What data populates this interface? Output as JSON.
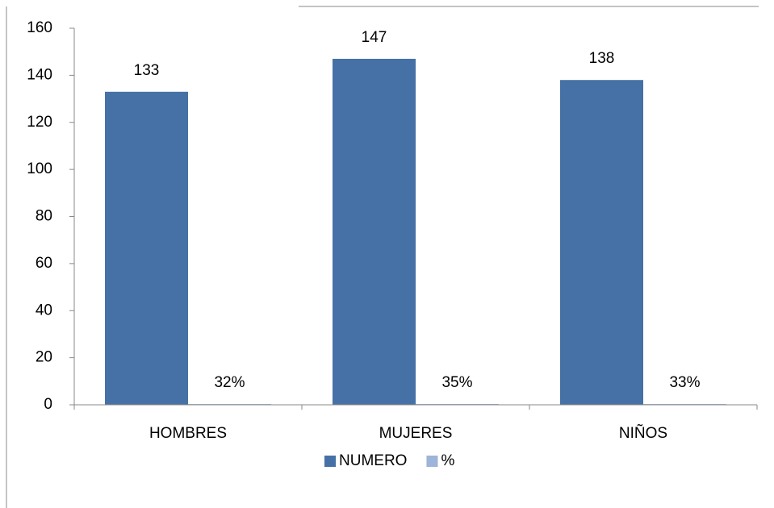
{
  "chart_data": {
    "type": "bar",
    "categories": [
      "HOMBRES",
      "MUJERES",
      "NIÑOS"
    ],
    "series": [
      {
        "name": "NUMERO",
        "color": "#4571a6",
        "values": [
          133,
          147,
          138
        ]
      },
      {
        "name": "%",
        "color": "#9eb4d8",
        "values": [
          0.32,
          0.35,
          0.33
        ],
        "value_labels": [
          "32%",
          "35%",
          "33%"
        ]
      }
    ],
    "ylim": [
      0,
      160
    ],
    "yticks": [
      0,
      20,
      40,
      60,
      80,
      100,
      120,
      140,
      160
    ],
    "legend": "bottom"
  }
}
